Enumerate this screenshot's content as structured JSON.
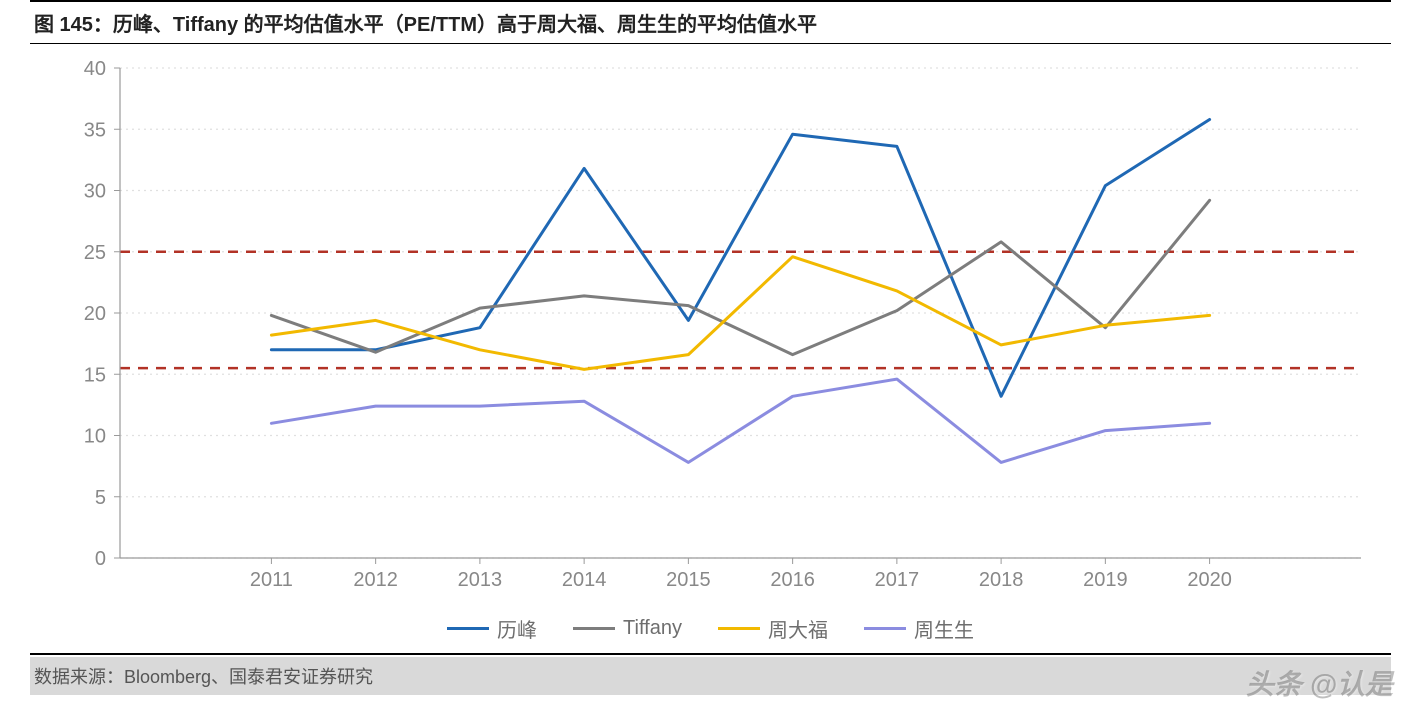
{
  "title": "图 145：历峰、Tiffany 的平均估值水平（PE/TTM）高于周大福、周生生的平均估值水平",
  "source": "数据来源：Bloomberg、国泰君安证券研究",
  "watermark": "头条 @认是",
  "chart": {
    "type": "line",
    "background_color": "#ffffff",
    "grid_color": "#e0e0e0",
    "axis_color": "#9a9a9a",
    "tick_color": "#888888",
    "label_color": "#888888",
    "label_fontsize": 20,
    "ylim": [
      0,
      40
    ],
    "ytick_step": 5,
    "categories": [
      "2011",
      "2012",
      "2013",
      "2014",
      "2015",
      "2016",
      "2017",
      "2018",
      "2019",
      "2020"
    ],
    "reference_lines": [
      {
        "value": 25,
        "color": "#b23226",
        "dash": "10 8",
        "width": 2.5
      },
      {
        "value": 15.5,
        "color": "#b23226",
        "dash": "10 8",
        "width": 2.5
      }
    ],
    "series": [
      {
        "name": "历峰",
        "color": "#1f68b4",
        "width": 3,
        "values": [
          17.0,
          17.0,
          18.8,
          31.8,
          19.4,
          34.6,
          33.6,
          13.2,
          30.4,
          35.8
        ]
      },
      {
        "name": "Tiffany",
        "color": "#7d7d7d",
        "width": 3,
        "values": [
          19.8,
          16.8,
          20.4,
          21.4,
          20.6,
          16.6,
          20.2,
          25.8,
          18.8,
          29.2
        ]
      },
      {
        "name": "周大福",
        "color": "#f2b900",
        "width": 3,
        "values": [
          18.2,
          19.4,
          17.0,
          15.4,
          16.6,
          24.6,
          21.8,
          17.4,
          19.0,
          19.8
        ]
      },
      {
        "name": "周生生",
        "color": "#8b8ce0",
        "width": 3,
        "values": [
          11.0,
          12.4,
          12.4,
          12.8,
          7.8,
          13.2,
          14.6,
          7.8,
          10.4,
          11.0
        ]
      }
    ]
  }
}
